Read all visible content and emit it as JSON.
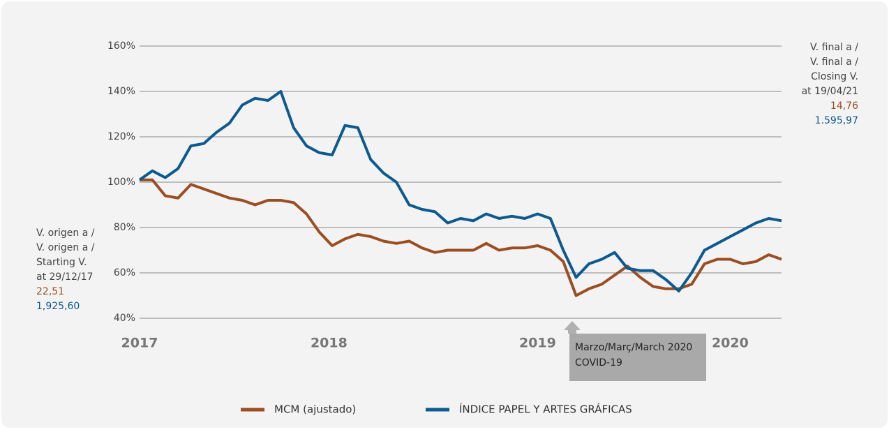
{
  "chart_data": {
    "type": "line",
    "x": [
      0,
      2,
      4,
      6,
      8,
      10,
      12,
      14,
      16,
      18,
      20,
      22,
      24,
      26,
      28,
      30,
      32,
      34,
      36,
      38,
      40,
      42,
      44,
      46,
      48,
      50,
      52,
      54,
      56,
      58,
      60,
      62,
      64,
      66,
      68,
      70,
      72,
      74,
      76,
      78,
      80,
      82,
      84,
      86,
      88,
      90,
      92,
      94,
      96,
      98,
      100
    ],
    "xlim": [
      0,
      100
    ],
    "xticks": [
      {
        "value": 0,
        "label": "2017"
      },
      {
        "value": 29.5,
        "label": "2018"
      },
      {
        "value": 62,
        "label": "2019"
      },
      {
        "value": 92,
        "label": "2020"
      }
    ],
    "ylim": [
      40,
      160
    ],
    "yticks": [
      {
        "value": 40,
        "label": "40%"
      },
      {
        "value": 60,
        "label": "60%"
      },
      {
        "value": 80,
        "label": "80%"
      },
      {
        "value": 100,
        "label": "100%"
      },
      {
        "value": 120,
        "label": "120%"
      },
      {
        "value": 140,
        "label": "140%"
      },
      {
        "value": 160,
        "label": "160%"
      }
    ],
    "grid": true,
    "series": [
      {
        "name": "MCM (ajustado)",
        "color": "#9a4e22",
        "values": [
          101,
          101,
          94,
          93,
          99,
          97,
          95,
          93,
          92,
          90,
          92,
          92,
          91,
          86,
          78,
          72,
          75,
          77,
          76,
          74,
          73,
          74,
          71,
          69,
          70,
          70,
          70,
          73,
          70,
          71,
          71,
          72,
          70,
          65,
          50,
          53,
          55,
          59,
          63,
          58,
          54,
          53,
          53,
          55,
          64,
          66,
          66,
          64,
          65,
          68,
          66
        ]
      },
      {
        "name": "ÍNDICE PAPEL Y ARTES GRÁFICAS",
        "color": "#0c5a8e",
        "values": [
          101,
          105,
          102,
          106,
          116,
          117,
          122,
          126,
          134,
          137,
          136,
          140,
          124,
          116,
          113,
          112,
          125,
          124,
          110,
          104,
          100,
          90,
          88,
          87,
          82,
          84,
          83,
          86,
          84,
          85,
          84,
          86,
          84,
          70,
          58,
          64,
          66,
          69,
          62,
          61,
          61,
          57,
          52,
          60,
          70,
          73,
          76,
          79,
          82,
          84,
          83
        ]
      }
    ],
    "left_note": {
      "lines": [
        "V. origen a /",
        "V. origen a /",
        "Starting V.",
        "at 29/12/17"
      ],
      "values": [
        "22,51",
        "1,925,60"
      ]
    },
    "right_note": {
      "lines": [
        "V. final a /",
        "V. final a /",
        "Closing V.",
        "at 19/04/21"
      ],
      "values": [
        "14,76",
        "1.595,97"
      ]
    },
    "annotation": {
      "lines": [
        "Marzo/Març/March 2020",
        "COVID-19"
      ]
    }
  }
}
